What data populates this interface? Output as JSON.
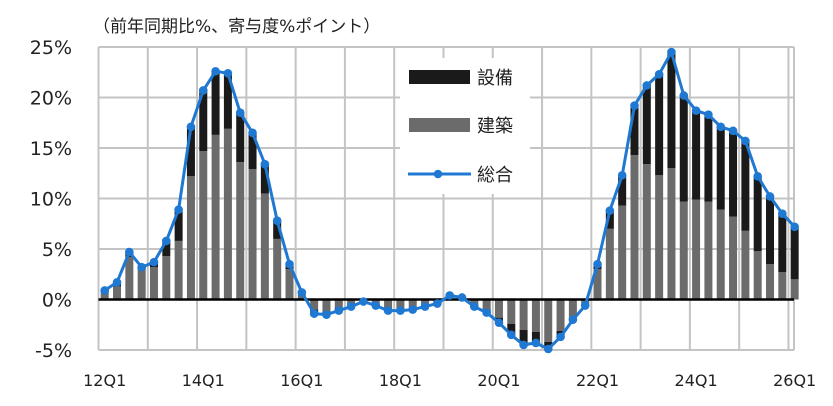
{
  "chart_data": {
    "type": "bar",
    "subtype": "stacked bar with line",
    "title": "",
    "unit_label": "（前年同期比%、寄与度%ポイント）",
    "xlabel": "",
    "ylabel": "",
    "ylim": [
      -5,
      25
    ],
    "yticks": [
      "25%",
      "20%",
      "15%",
      "10%",
      "5%",
      "0%",
      "-5%"
    ],
    "ytick_values": [
      25,
      20,
      15,
      10,
      5,
      0,
      -5
    ],
    "xtick_labels": [
      "12Q1",
      "14Q1",
      "16Q1",
      "18Q1",
      "20Q1",
      "22Q1",
      "24Q1",
      "26Q1"
    ],
    "grid": true,
    "legend_position": "upper center inside plot",
    "categories": [
      "12Q1",
      "12Q2",
      "12Q3",
      "12Q4",
      "13Q1",
      "13Q2",
      "13Q3",
      "13Q4",
      "14Q1",
      "14Q2",
      "14Q3",
      "14Q4",
      "15Q1",
      "15Q2",
      "15Q3",
      "15Q4",
      "16Q1",
      "16Q2",
      "16Q3",
      "16Q4",
      "17Q1",
      "17Q2",
      "17Q3",
      "17Q4",
      "18Q1",
      "18Q2",
      "18Q3",
      "18Q4",
      "19Q1",
      "19Q2",
      "19Q3",
      "19Q4",
      "20Q1",
      "20Q2",
      "20Q3",
      "20Q4",
      "21Q1",
      "21Q2",
      "21Q3",
      "21Q4",
      "22Q1",
      "22Q2",
      "22Q3",
      "22Q4",
      "23Q1",
      "23Q2",
      "23Q3",
      "23Q4",
      "24Q1",
      "24Q2",
      "24Q3",
      "24Q4",
      "25Q1",
      "25Q2",
      "25Q3",
      "25Q4",
      "26Q1"
    ],
    "series": [
      {
        "name": "設備",
        "type": "bar",
        "color": "#1a1a1a",
        "values": [
          0.2,
          0.4,
          0.5,
          0.2,
          0.5,
          1.5,
          3.1,
          4.9,
          6.0,
          6.3,
          5.5,
          4.9,
          3.6,
          2.9,
          1.8,
          0.5,
          0.1,
          -0.4,
          -0.3,
          -0.3,
          -0.1,
          -0.1,
          -0.1,
          -0.2,
          -0.1,
          -0.1,
          -0.1,
          0.0,
          0.2,
          0.1,
          -0.2,
          -0.3,
          -0.5,
          -1.1,
          -1.5,
          -1.1,
          -0.7,
          -0.6,
          0.0,
          0.0,
          0.5,
          1.8,
          3.0,
          4.9,
          7.8,
          10.0,
          11.5,
          10.5,
          8.8,
          8.6,
          8.2,
          8.5,
          8.9,
          7.4,
          6.7,
          5.8,
          5.2
        ]
      },
      {
        "name": "建築",
        "type": "bar",
        "color": "#6b6b6b",
        "values": [
          0.7,
          1.3,
          4.2,
          3.0,
          3.2,
          4.3,
          5.8,
          12.2,
          14.7,
          16.3,
          16.9,
          13.6,
          12.9,
          10.5,
          6.0,
          3.0,
          0.6,
          -1.0,
          -1.2,
          -0.8,
          -0.6,
          -0.1,
          -0.5,
          -0.9,
          -1.0,
          -0.9,
          -0.6,
          -0.4,
          0.2,
          0.1,
          -0.5,
          -1.0,
          -1.8,
          -2.4,
          -3.0,
          -3.2,
          -4.2,
          -3.1,
          -2.0,
          -0.6,
          3.0,
          7.0,
          9.3,
          14.3,
          13.4,
          12.3,
          13.0,
          9.7,
          9.9,
          9.7,
          8.9,
          8.2,
          6.8,
          4.8,
          3.5,
          2.7,
          2.0
        ]
      },
      {
        "name": "総合",
        "type": "line",
        "color": "#1f78d1",
        "values": [
          0.9,
          1.7,
          4.7,
          3.2,
          3.7,
          5.8,
          8.9,
          17.1,
          20.7,
          22.6,
          22.4,
          18.5,
          16.5,
          13.4,
          7.8,
          3.5,
          0.7,
          -1.4,
          -1.5,
          -1.1,
          -0.7,
          -0.2,
          -0.6,
          -1.1,
          -1.1,
          -1.0,
          -0.7,
          -0.4,
          0.4,
          0.2,
          -0.7,
          -1.3,
          -2.3,
          -3.5,
          -4.5,
          -4.3,
          -4.9,
          -3.7,
          -2.0,
          -0.6,
          3.5,
          8.8,
          12.3,
          19.2,
          21.2,
          22.3,
          24.5,
          20.2,
          18.7,
          18.3,
          17.1,
          16.7,
          15.7,
          12.2,
          10.2,
          8.5,
          7.2
        ]
      }
    ]
  },
  "legend": {
    "items": [
      {
        "label": "設備",
        "swatch": "bar",
        "color": "#1a1a1a"
      },
      {
        "label": "建築",
        "swatch": "bar",
        "color": "#6b6b6b"
      },
      {
        "label": "総合",
        "swatch": "line-marker",
        "color": "#1f78d1"
      }
    ]
  }
}
